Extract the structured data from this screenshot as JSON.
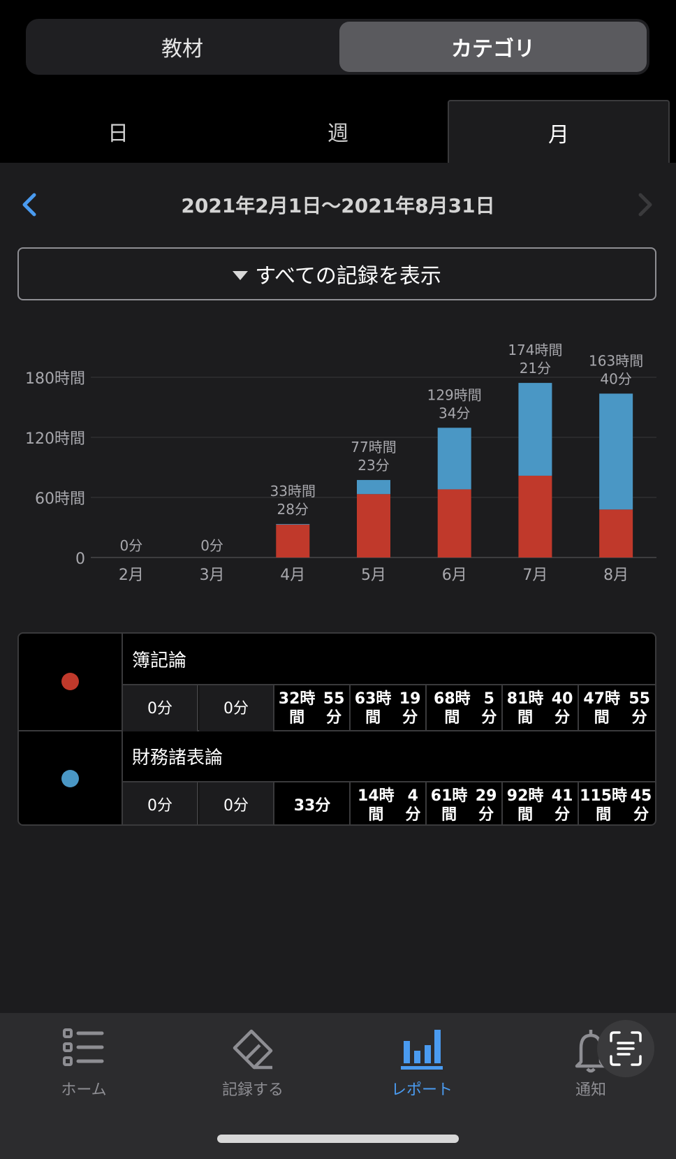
{
  "segment": {
    "left": "教材",
    "right": "カテゴリ"
  },
  "period_tabs": [
    "日",
    "週",
    "月"
  ],
  "date_range": "2021年2月1日〜2021年8月31日",
  "filter_label": "すべての記録を表示",
  "colors": {
    "boki": "#c0392b",
    "zaimu": "#4a97c5",
    "accent": "#4a9bf0"
  },
  "chart_data": {
    "type": "bar",
    "stacked": true,
    "categories": [
      "2月",
      "3月",
      "4月",
      "5月",
      "6月",
      "7月",
      "8月"
    ],
    "series": [
      {
        "name": "簿記論",
        "values": [
          0,
          0,
          32.92,
          63.32,
          68.08,
          81.67,
          47.92
        ]
      },
      {
        "name": "財務諸表論",
        "values": [
          0,
          0,
          0.55,
          14.07,
          61.48,
          92.68,
          115.75
        ]
      }
    ],
    "total_labels": [
      [
        "0分"
      ],
      [
        "0分"
      ],
      [
        "33時間",
        "28分"
      ],
      [
        "77時間",
        "23分"
      ],
      [
        "129時間",
        "34分"
      ],
      [
        "174時間",
        "21分"
      ],
      [
        "163時間",
        "40分"
      ]
    ],
    "ylim": [
      0,
      180
    ],
    "yticks": [
      0,
      60,
      120,
      180
    ],
    "ytick_labels": [
      "0",
      "60時間",
      "120時間",
      "180時間"
    ],
    "grid": true
  },
  "legend_table": [
    {
      "name": "簿記論",
      "values": [
        [
          "0分"
        ],
        [
          "0分"
        ],
        [
          "32時間",
          "55分"
        ],
        [
          "63時間",
          "19分"
        ],
        [
          "68時間",
          "5分"
        ],
        [
          "81時間",
          "40分"
        ],
        [
          "47時間",
          "55分"
        ]
      ]
    },
    {
      "name": "財務諸表論",
      "values": [
        [
          "0分"
        ],
        [
          "0分"
        ],
        [
          "33分"
        ],
        [
          "14時間",
          "4分"
        ],
        [
          "61時間",
          "29分"
        ],
        [
          "92時間",
          "41分"
        ],
        [
          "115時間",
          "45分"
        ]
      ]
    }
  ],
  "tabbar": [
    {
      "label": "ホーム",
      "icon": "list-icon"
    },
    {
      "label": "記録する",
      "icon": "eraser-icon"
    },
    {
      "label": "レポート",
      "icon": "bar-chart-icon",
      "active": true
    },
    {
      "label": "通知",
      "icon": "bell-icon"
    }
  ]
}
